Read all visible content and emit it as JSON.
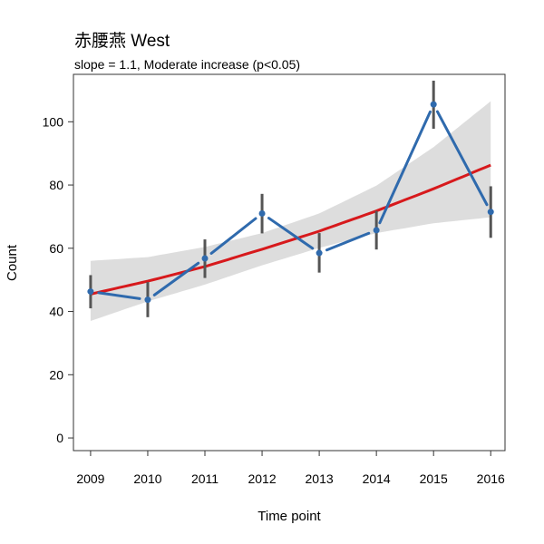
{
  "chart_data": {
    "type": "line",
    "title": "赤腰燕 West",
    "subtitle": "slope = 1.1, Moderate increase (p<0.05)",
    "xlabel": "Time point",
    "ylabel": "Count",
    "x": [
      2009,
      2010,
      2011,
      2012,
      2013,
      2014,
      2015,
      2016
    ],
    "xlim": [
      2008.7,
      2016.25
    ],
    "ylim": [
      -4,
      115
    ],
    "yticks": [
      0,
      20,
      40,
      60,
      80,
      100
    ],
    "grid": false,
    "series": [
      {
        "role": "observed",
        "color": "#2f6aad",
        "values": [
          46.3,
          43.7,
          56.8,
          71.0,
          58.5,
          65.7,
          105.5,
          71.5
        ],
        "err_low": [
          41.0,
          38.2,
          50.6,
          64.7,
          52.3,
          59.6,
          97.8,
          63.3
        ],
        "err_high": [
          51.5,
          49.3,
          62.8,
          77.2,
          64.8,
          71.8,
          113.0,
          79.6
        ]
      },
      {
        "role": "trend",
        "color": "#d7191c",
        "values": [
          45.5,
          49.6,
          54.2,
          59.7,
          65.4,
          71.8,
          78.8,
          86.3
        ],
        "ci_low": [
          37.0,
          43.2,
          48.5,
          54.6,
          60.1,
          64.8,
          67.9,
          69.8
        ],
        "ci_high": [
          56.0,
          57.2,
          60.4,
          64.8,
          71.0,
          79.8,
          92.0,
          106.5
        ]
      }
    ],
    "colors": {
      "ci_band": "#dddddd",
      "error_bar": "#555555",
      "axis": "#333333"
    }
  }
}
